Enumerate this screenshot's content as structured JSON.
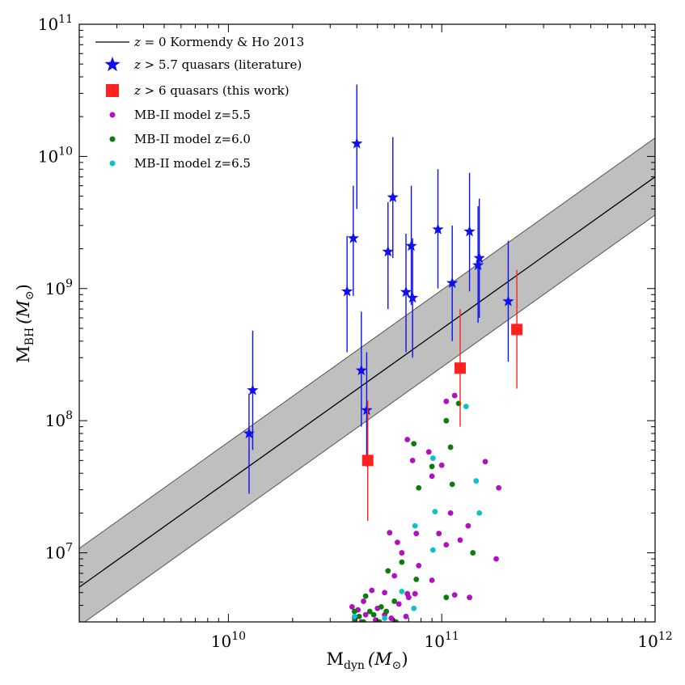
{
  "chart_data": {
    "type": "scatter",
    "x_scale": "log",
    "y_scale": "log",
    "xlim": [
      2000000000.0,
      1000000000000.0
    ],
    "ylim": [
      3000000.0,
      100000000000.0
    ],
    "xlabel": {
      "base": "M",
      "sub": "dyn",
      "unit": "(M",
      "unit_sub": "⊙",
      "close": ")"
    },
    "ylabel": {
      "base": "M",
      "sub": "BH",
      "unit": "(M",
      "unit_sub": "⊙",
      "close": ")"
    },
    "x_ticks": [
      {
        "value": 10000000000.0,
        "base": "10",
        "exp": "10"
      },
      {
        "value": 100000000000.0,
        "base": "10",
        "exp": "11"
      },
      {
        "value": 1000000000000.0,
        "base": "10",
        "exp": "12"
      }
    ],
    "y_ticks": [
      {
        "value": 10000000.0,
        "base": "10",
        "exp": "7"
      },
      {
        "value": 100000000.0,
        "base": "10",
        "exp": "8"
      },
      {
        "value": 1000000000.0,
        "base": "10",
        "exp": "9"
      },
      {
        "value": 10000000000.0,
        "base": "10",
        "exp": "10"
      },
      {
        "value": 100000000000.0,
        "base": "10",
        "exp": "11"
      }
    ],
    "relation": {
      "name": "z = 0 Kormendy & Ho 2013",
      "line": [
        [
          2000000000.0,
          5500000.0
        ],
        [
          1000000000000.0,
          7000000000.0
        ]
      ],
      "band_lower": [
        [
          2000000000.0,
          2800000.0
        ],
        [
          1000000000000.0,
          3600000000.0
        ]
      ],
      "band_upper": [
        [
          2000000000.0,
          10800000.0
        ],
        [
          1000000000000.0,
          13800000000.0
        ]
      ],
      "color": "#000000",
      "band_color": "#bfbfbf"
    },
    "legend": [
      {
        "math": "z",
        "rel": " = 0",
        "text": " Kormendy & Ho 2013",
        "marker": "line",
        "color": "#000000"
      },
      {
        "math": "z",
        "rel": " > 5.7",
        "text": " quasars (literature)",
        "marker": "star",
        "color": "#1010ee"
      },
      {
        "math": "z",
        "rel": " > 6",
        "text": " quasars (this work)",
        "marker": "square",
        "color": "#ff2020"
      },
      {
        "math": "",
        "rel": "",
        "text": "MB-II model z=5.5",
        "marker": "dot",
        "color": "#b010c0"
      },
      {
        "math": "",
        "rel": "",
        "text": "MB-II model z=6.0",
        "marker": "dot",
        "color": "#0a7d0a"
      },
      {
        "math": "",
        "rel": "",
        "text": "MB-II model z=6.5",
        "marker": "dot",
        "color": "#10c0c8"
      }
    ],
    "series": [
      {
        "name": "z > 5.7 quasars (literature)",
        "marker": "star",
        "color": "#1010ee",
        "points": [
          {
            "x": 12500000000.0,
            "y": 80000000.0,
            "ylo": 28000000.0,
            "yhi": 160000000.0
          },
          {
            "x": 13000000000.0,
            "y": 170000000.0,
            "ylo": 60000000.0,
            "yhi": 480000000.0
          },
          {
            "x": 36000000000.0,
            "y": 950000000.0,
            "ylo": 330000000.0,
            "yhi": 2500000000.0
          },
          {
            "x": 38500000000.0,
            "y": 2400000000.0,
            "ylo": 880000000.0,
            "yhi": 6000000000.0
          },
          {
            "x": 40000000000.0,
            "y": 12500000000.0,
            "ylo": 4000000000.0,
            "yhi": 35000000000.0
          },
          {
            "x": 42000000000.0,
            "y": 240000000.0,
            "ylo": 90000000.0,
            "yhi": 670000000.0
          },
          {
            "x": 44500000000.0,
            "y": 120000000.0,
            "ylo": 45000000.0,
            "yhi": 330000000.0
          },
          {
            "x": 56000000000.0,
            "y": 1900000000.0,
            "ylo": 700000000.0,
            "yhi": 4500000000.0
          },
          {
            "x": 59000000000.0,
            "y": 4900000000.0,
            "ylo": 1700000000.0,
            "yhi": 14000000000.0
          },
          {
            "x": 68000000000.0,
            "y": 940000000.0,
            "ylo": 330000000.0,
            "yhi": 2600000000.0
          },
          {
            "x": 72000000000.0,
            "y": 2100000000.0,
            "ylo": 750000000.0,
            "yhi": 6000000000.0
          },
          {
            "x": 73000000000.0,
            "y": 850000000.0,
            "ylo": 300000000.0,
            "yhi": 2400000000.0
          },
          {
            "x": 96000000000.0,
            "y": 2800000000.0,
            "ylo": 1000000000.0,
            "yhi": 8000000000.0
          },
          {
            "x": 112000000000.0,
            "y": 1100000000.0,
            "ylo": 400000000.0,
            "yhi": 3000000000.0
          },
          {
            "x": 135000000000.0,
            "y": 2700000000.0,
            "ylo": 950000000.0,
            "yhi": 7500000000.0
          },
          {
            "x": 148000000000.0,
            "y": 1500000000.0,
            "ylo": 550000000.0,
            "yhi": 4200000000.0
          },
          {
            "x": 150000000000.0,
            "y": 1700000000.0,
            "ylo": 600000000.0,
            "yhi": 4800000000.0
          },
          {
            "x": 205000000000.0,
            "y": 800000000.0,
            "ylo": 280000000.0,
            "yhi": 2300000000.0
          }
        ]
      },
      {
        "name": "z > 6 quasars (this work)",
        "marker": "square",
        "color": "#ff2020",
        "points": [
          {
            "x": 45000000000.0,
            "y": 50000000.0,
            "ylo": 17500000.0,
            "yhi": 142000000.0
          },
          {
            "x": 122000000000.0,
            "y": 250000000.0,
            "ylo": 90000000.0,
            "yhi": 700000000.0
          },
          {
            "x": 225000000000.0,
            "y": 490000000.0,
            "ylo": 175000000.0,
            "yhi": 1380000000.0
          }
        ]
      },
      {
        "name": "MB-II model z=5.5",
        "marker": "dot",
        "color": "#b010c0",
        "points": [
          [
            69000000000.0,
            72000000.0
          ],
          [
            87000000000.0,
            58000000.0
          ],
          [
            105000000000.0,
            140000000.0
          ],
          [
            115000000000.0,
            155000000.0
          ],
          [
            160000000000.0,
            49000000.0
          ],
          [
            185000000000.0,
            31000000.0
          ],
          [
            73000000000.0,
            50000000.0
          ],
          [
            100000000000.0,
            46000000.0
          ],
          [
            90000000000.0,
            38000000.0
          ],
          [
            97000000000.0,
            14000000.0
          ],
          [
            105000000000.0,
            11500000.0
          ],
          [
            122000000000.0,
            12500000.0
          ],
          [
            133000000000.0,
            16000000.0
          ],
          [
            110000000000.0,
            20000000.0
          ],
          [
            76000000000.0,
            14000000.0
          ],
          [
            57000000000.0,
            14200000.0
          ],
          [
            62000000000.0,
            12000000.0
          ],
          [
            180000000000.0,
            9000000.0
          ],
          [
            65000000000.0,
            10000000.0
          ],
          [
            78000000000.0,
            8000000.0
          ],
          [
            60000000000.0,
            6700000.0
          ],
          [
            90000000000.0,
            6200000.0
          ],
          [
            47000000000.0,
            5200000.0
          ],
          [
            54000000000.0,
            5000000.0
          ],
          [
            69000000000.0,
            4900000.0
          ],
          [
            75000000000.0,
            4900000.0
          ],
          [
            115000000000.0,
            4800000.0
          ],
          [
            135000000000.0,
            4600000.0
          ],
          [
            43000000000.0,
            4300000.0
          ],
          [
            38000000000.0,
            3900000.0
          ],
          [
            40500000000.0,
            3700000.0
          ],
          [
            50000000000.0,
            3800000.0
          ],
          [
            63000000000.0,
            4100000.0
          ],
          [
            70000000000.0,
            4600000.0
          ],
          [
            44000000000.0,
            3400000.0
          ],
          [
            39000000000.0,
            3200000.0
          ],
          [
            54000000000.0,
            3400000.0
          ],
          [
            60000000000.0,
            3000000.0
          ],
          [
            68000000000.0,
            3300000.0
          ],
          [
            42000000000.0,
            3000000.0
          ],
          [
            49000000000.0,
            3100000.0
          ],
          [
            58000000000.0,
            3200000.0
          ]
        ]
      },
      {
        "name": "MB-II model z=6.0",
        "marker": "dot",
        "color": "#0a7d0a",
        "points": [
          [
            120000000000.0,
            135000000.0
          ],
          [
            105000000000.0,
            100000000.0
          ],
          [
            74000000000.0,
            67000000.0
          ],
          [
            110000000000.0,
            63000000.0
          ],
          [
            90000000000.0,
            45000000.0
          ],
          [
            78000000000.0,
            31000000.0
          ],
          [
            112000000000.0,
            33000000.0
          ],
          [
            140000000000.0,
            10000000.0
          ],
          [
            65000000000.0,
            8500000.0
          ],
          [
            56000000000.0,
            7300000.0
          ],
          [
            76000000000.0,
            6300000.0
          ],
          [
            105000000000.0,
            4600000.0
          ],
          [
            60000000000.0,
            4300000.0
          ],
          [
            44000000000.0,
            4700000.0
          ],
          [
            52000000000.0,
            3900000.0
          ],
          [
            46000000000.0,
            3600000.0
          ],
          [
            39000000000.0,
            3600000.0
          ],
          [
            41000000000.0,
            3300000.0
          ],
          [
            48000000000.0,
            3400000.0
          ],
          [
            55000000000.0,
            3600000.0
          ],
          [
            39000000000.0,
            3000000.0
          ],
          [
            43000000000.0,
            3000000.0
          ],
          [
            51000000000.0,
            3000000.0
          ],
          [
            61000000000.0,
            3000000.0
          ]
        ]
      },
      {
        "name": "MB-II model z=6.5",
        "marker": "dot",
        "color": "#10c0c8",
        "points": [
          [
            130000000000.0,
            128000000.0
          ],
          [
            91000000000.0,
            52000000.0
          ],
          [
            145000000000.0,
            35000000.0
          ],
          [
            93000000000.0,
            20500000.0
          ],
          [
            150000000000.0,
            20000000.0
          ],
          [
            75000000000.0,
            16000000.0
          ],
          [
            91000000000.0,
            10500000.0
          ],
          [
            65000000000.0,
            5100000.0
          ],
          [
            74000000000.0,
            3800000.0
          ],
          [
            54000000000.0,
            3200000.0
          ],
          [
            39000000000.0,
            3300000.0
          ]
        ]
      }
    ]
  }
}
